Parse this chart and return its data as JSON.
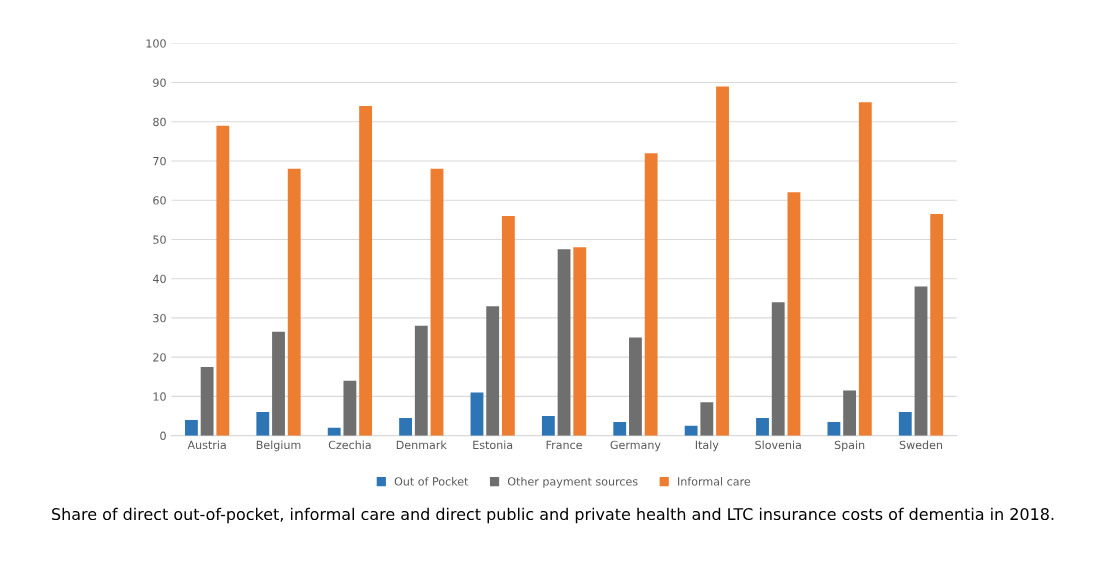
{
  "chart_data": {
    "type": "bar",
    "categories": [
      "Austria",
      "Belgium",
      "Czechia",
      "Denmark",
      "Estonia",
      "France",
      "Germany",
      "Italy",
      "Slovenia",
      "Spain",
      "Sweden"
    ],
    "series": [
      {
        "name": "Out of Pocket",
        "color": "#2e75b6",
        "values": [
          4,
          6,
          2,
          4.5,
          11,
          5,
          3.5,
          2.5,
          4.5,
          3.5,
          6
        ]
      },
      {
        "name": "Other payment sources",
        "color": "#6f6f6f",
        "values": [
          17.5,
          26.5,
          14,
          28,
          33,
          47.5,
          25,
          8.5,
          34,
          11.5,
          38
        ]
      },
      {
        "name": "Informal care",
        "color": "#ed7d31",
        "values": [
          79,
          68,
          84,
          68,
          56,
          48,
          72,
          89,
          62,
          85,
          56.5
        ]
      }
    ],
    "ylim": [
      0,
      100
    ],
    "yticks": [
      0,
      10,
      20,
      30,
      40,
      50,
      60,
      70,
      80,
      90,
      100
    ],
    "grid": "y",
    "legend": "bottom",
    "annotations": [
      "Share of direct out-of-pocket, informal care and direct public and private health and LTC insurance costs of dementia in 2018."
    ]
  }
}
